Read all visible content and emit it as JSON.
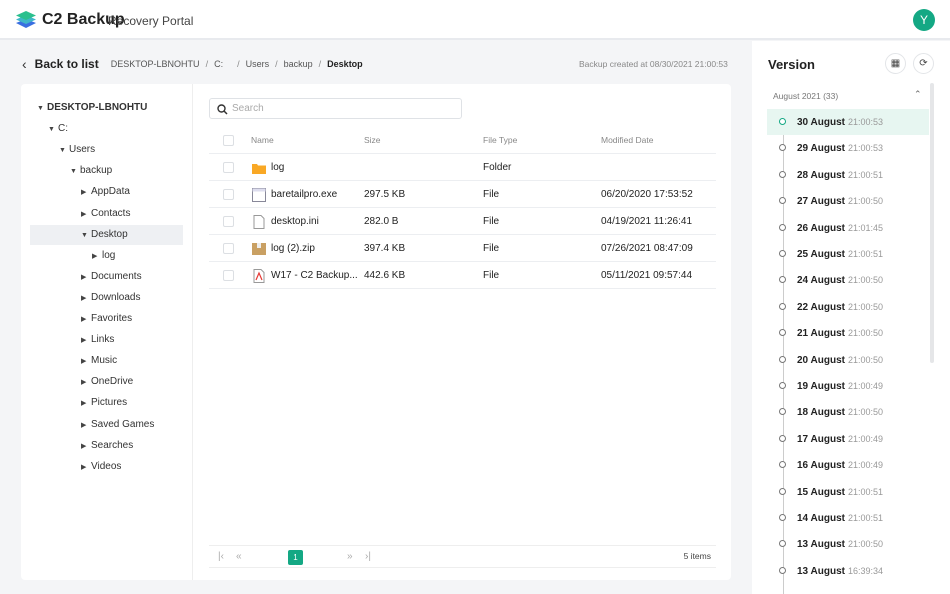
{
  "header": {
    "brand": "C2 Backup",
    "subtitle": "Recovery Portal",
    "avatar": "Y",
    "accent": "#14a884"
  },
  "breadcrumb": {
    "back": "Back to list",
    "items": [
      "DESKTOP-LBNOHTU",
      "C:",
      "Users",
      "backup",
      "Desktop"
    ],
    "backup_info": "Backup created at 08/30/2021 21:00:53"
  },
  "tree": [
    {
      "label": "DESKTOP-LBNOHTU",
      "level": 0,
      "open": true,
      "bold": true
    },
    {
      "label": "C:",
      "level": 1,
      "open": true
    },
    {
      "label": "Users",
      "level": 2,
      "open": true
    },
    {
      "label": "backup",
      "level": 3,
      "open": true
    },
    {
      "label": "AppData",
      "level": 4,
      "open": false
    },
    {
      "label": "Contacts",
      "level": 4,
      "open": false
    },
    {
      "label": "Desktop",
      "level": 4,
      "open": true,
      "selected": true
    },
    {
      "label": "log",
      "level": 5,
      "open": false
    },
    {
      "label": "Documents",
      "level": 4,
      "open": false
    },
    {
      "label": "Downloads",
      "level": 4,
      "open": false
    },
    {
      "label": "Favorites",
      "level": 4,
      "open": false
    },
    {
      "label": "Links",
      "level": 4,
      "open": false
    },
    {
      "label": "Music",
      "level": 4,
      "open": false
    },
    {
      "label": "OneDrive",
      "level": 4,
      "open": false
    },
    {
      "label": "Pictures",
      "level": 4,
      "open": false
    },
    {
      "label": "Saved Games",
      "level": 4,
      "open": false
    },
    {
      "label": "Searches",
      "level": 4,
      "open": false
    },
    {
      "label": "Videos",
      "level": 4,
      "open": false
    }
  ],
  "search": {
    "placeholder": "Search"
  },
  "table": {
    "columns": [
      "Name",
      "Size",
      "File Type",
      "Modified Date"
    ],
    "rows": [
      {
        "icon": "folder-icon",
        "name": "log",
        "size": "",
        "type": "Folder",
        "modified": ""
      },
      {
        "icon": "exe-file-icon",
        "name": "baretailpro.exe",
        "size": "297.5 KB",
        "type": "File",
        "modified": "06/20/2020 17:53:52"
      },
      {
        "icon": "file-icon",
        "name": "desktop.ini",
        "size": "282.0 B",
        "type": "File",
        "modified": "04/19/2021 11:26:41"
      },
      {
        "icon": "zip-file-icon",
        "name": "log (2).zip",
        "size": "397.4 KB",
        "type": "File",
        "modified": "07/26/2021 08:47:09"
      },
      {
        "icon": "pdf-file-icon",
        "name": "W17 - C2 Backup...",
        "size": "442.6 KB",
        "type": "File",
        "modified": "05/11/2021 09:57:44"
      }
    ]
  },
  "pager": {
    "page": "1",
    "items": "5 items"
  },
  "version": {
    "title": "Version",
    "month": "August 2021 (33)",
    "items": [
      {
        "date": "30 August",
        "time": "21:00:53",
        "selected": true
      },
      {
        "date": "29 August",
        "time": "21:00:53"
      },
      {
        "date": "28 August",
        "time": "21:00:51"
      },
      {
        "date": "27 August",
        "time": "21:00:50"
      },
      {
        "date": "26 August",
        "time": "21:01:45"
      },
      {
        "date": "25 August",
        "time": "21:00:51"
      },
      {
        "date": "24 August",
        "time": "21:00:50"
      },
      {
        "date": "22 August",
        "time": "21:00:50"
      },
      {
        "date": "21 August",
        "time": "21:00:50"
      },
      {
        "date": "20 August",
        "time": "21:00:50"
      },
      {
        "date": "19 August",
        "time": "21:00:49"
      },
      {
        "date": "18 August",
        "time": "21:00:50"
      },
      {
        "date": "17 August",
        "time": "21:00:49"
      },
      {
        "date": "16 August",
        "time": "21:00:49"
      },
      {
        "date": "15 August",
        "time": "21:00:51"
      },
      {
        "date": "14 August",
        "time": "21:00:51"
      },
      {
        "date": "13 August",
        "time": "21:00:50"
      },
      {
        "date": "13 August",
        "time": "16:39:34"
      }
    ]
  }
}
